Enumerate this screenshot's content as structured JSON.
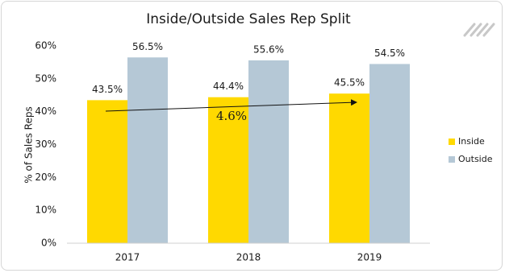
{
  "chart_data": {
    "type": "bar",
    "title": "Inside/Outside Sales Rep Split",
    "y_label": "% of Sales Reps",
    "categories": [
      "2017",
      "2018",
      "2019"
    ],
    "series": [
      {
        "name": "Inside",
        "color": "#ffd900",
        "values": [
          43.5,
          44.4,
          45.5
        ],
        "value_labels": [
          "43.5%",
          "44.4%",
          "45.5%"
        ]
      },
      {
        "name": "Outside",
        "color": "#b5c8d6",
        "values": [
          56.5,
          55.6,
          54.5
        ],
        "value_labels": [
          "56.5%",
          "55.6%",
          "54.5%"
        ]
      }
    ],
    "ylim": [
      0,
      60
    ],
    "yticks": [
      {
        "value": 0,
        "label": "0%"
      },
      {
        "value": 10,
        "label": "10%"
      },
      {
        "value": 20,
        "label": "20%"
      },
      {
        "value": 30,
        "label": "30%"
      },
      {
        "value": 40,
        "label": "40%"
      },
      {
        "value": 50,
        "label": "50%"
      },
      {
        "value": 60,
        "label": "60%"
      }
    ],
    "grid": false,
    "legend": "right",
    "annotation": "4.6%"
  }
}
